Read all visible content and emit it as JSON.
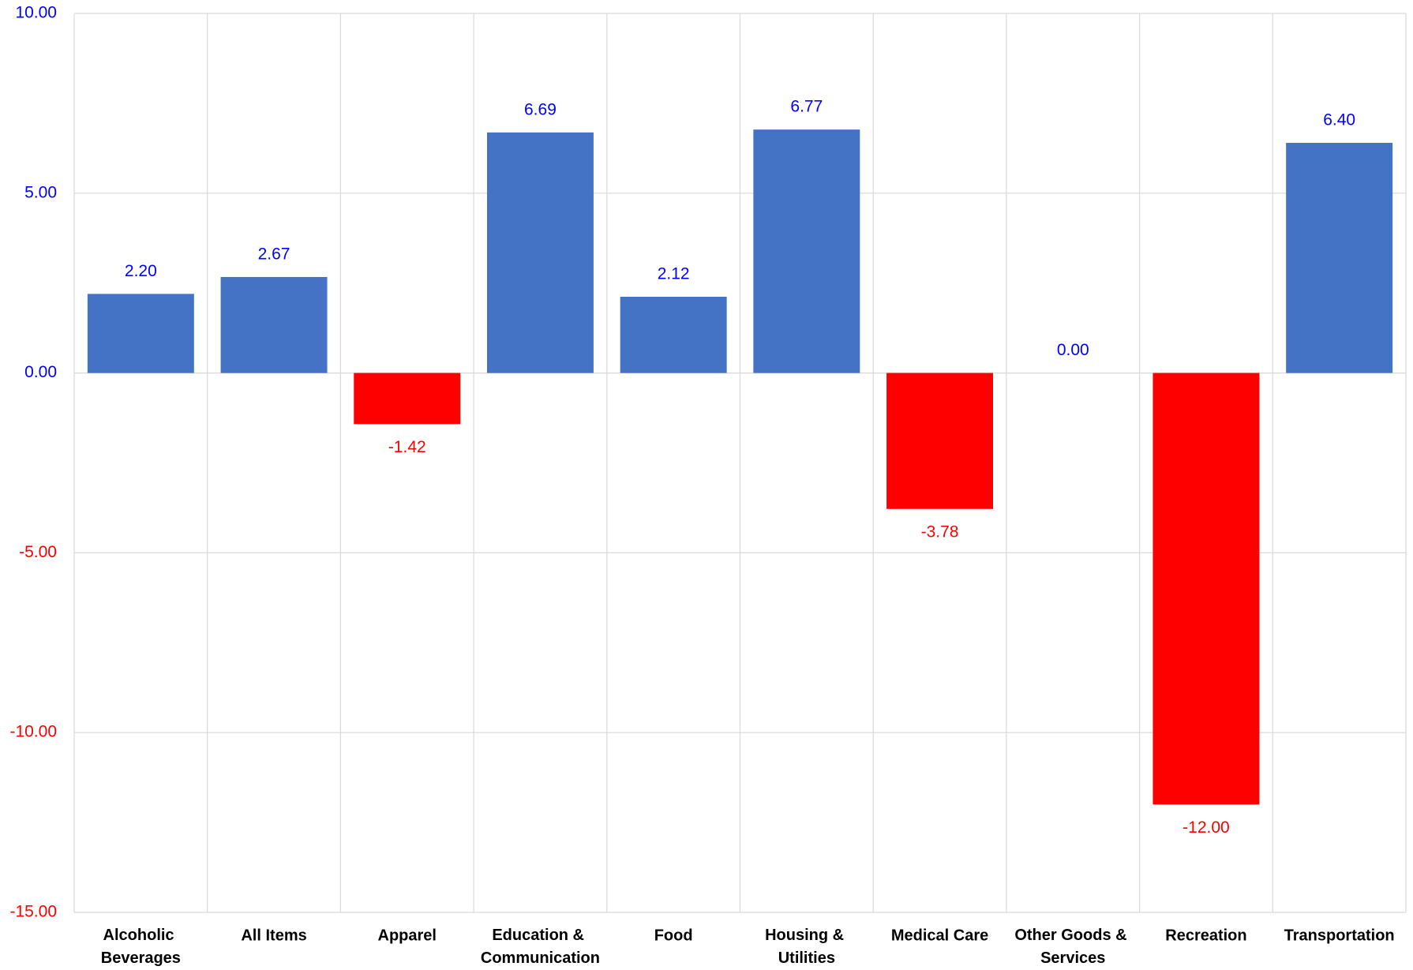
{
  "chart_data": {
    "type": "bar",
    "categories": [
      "Alcoholic Beverages",
      "All Items",
      "Apparel",
      "Education & Communication",
      "Food",
      "Housing & Utilities",
      "Medical Care",
      "Other Goods & Services",
      "Recreation",
      "Transportation"
    ],
    "values": [
      2.2,
      2.67,
      -1.42,
      6.69,
      2.12,
      6.77,
      -3.78,
      0,
      -12,
      6.4
    ],
    "value_labels": [
      "2.20",
      "2.67",
      "-1.42",
      "6.69",
      "2.12",
      "6.77",
      "-3.78",
      "0.00",
      "-12.00",
      "6.40"
    ],
    "color": "#4472c4",
    "negative_color": "#ff0000",
    "label_color": "#0000ff",
    "negative_label_color": "#ff0000",
    "ylim": [
      -15,
      10
    ],
    "yticks": [
      {
        "value": -15,
        "label": "-15.00"
      },
      {
        "value": -10,
        "label": "-10.00"
      },
      {
        "value": -5,
        "label": "-5.00"
      },
      {
        "value": 0,
        "label": "0.00"
      },
      {
        "value": 5,
        "label": "5.00"
      },
      {
        "value": 10,
        "label": "10.00"
      }
    ],
    "grid": true
  }
}
